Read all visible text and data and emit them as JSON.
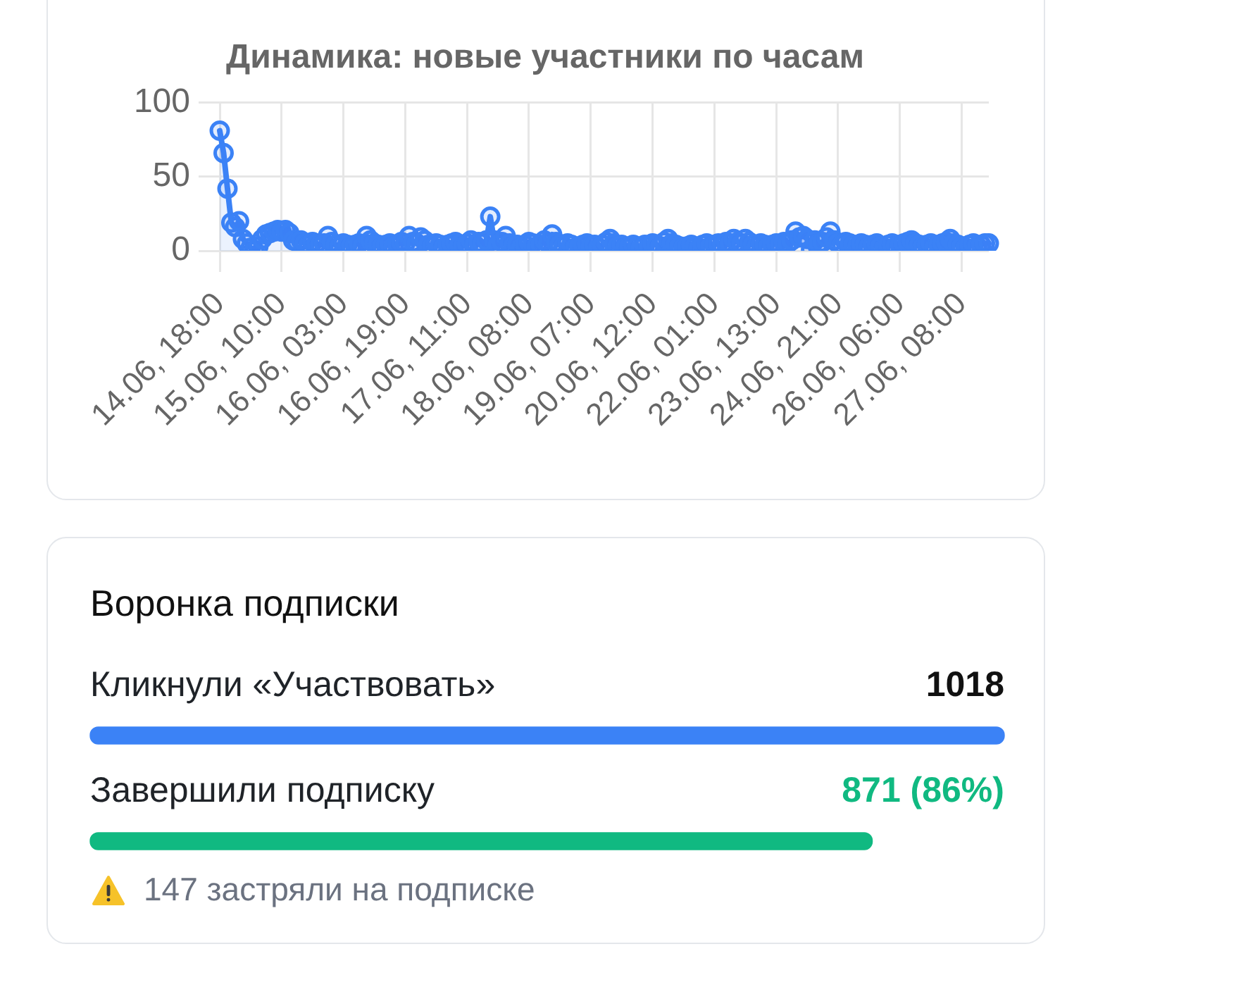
{
  "chart_data": [
    {
      "type": "area",
      "title": "Динамика: новые участники по часам",
      "categories": [
        "14.06, 18:00",
        null,
        null,
        null,
        null,
        null,
        null,
        null,
        null,
        null,
        null,
        null,
        null,
        null,
        null,
        null,
        "15.06, 10:00",
        null,
        null,
        null,
        null,
        null,
        null,
        null,
        null,
        null,
        null,
        null,
        null,
        null,
        null,
        null,
        "16.06, 03:00",
        null,
        null,
        null,
        null,
        null,
        null,
        null,
        null,
        null,
        null,
        null,
        null,
        null,
        null,
        null,
        "16.06, 19:00",
        null,
        null,
        null,
        null,
        null,
        null,
        null,
        null,
        null,
        null,
        null,
        null,
        null,
        null,
        null,
        "17.06, 11:00",
        null,
        null,
        null,
        null,
        null,
        null,
        null,
        null,
        null,
        null,
        null,
        null,
        null,
        null,
        null,
        "18.06, 08:00",
        null,
        null,
        null,
        null,
        null,
        null,
        null,
        null,
        null,
        null,
        null,
        null,
        null,
        null,
        null,
        "19.06, 07:00",
        null,
        null,
        null,
        null,
        null,
        null,
        null,
        null,
        null,
        null,
        null,
        null,
        null,
        null,
        null,
        "20.06, 12:00",
        null,
        null,
        null,
        null,
        null,
        null,
        null,
        null,
        null,
        null,
        null,
        null,
        null,
        null,
        null,
        "22.06, 01:00",
        null,
        null,
        null,
        null,
        null,
        null,
        null,
        null,
        null,
        null,
        null,
        null,
        null,
        null,
        null,
        "23.06, 13:00",
        null,
        null,
        null,
        null,
        null,
        null,
        null,
        null,
        null,
        null,
        null,
        null,
        null,
        null,
        null,
        "24.06, 21:00",
        null,
        null,
        null,
        null,
        null,
        null,
        null,
        null,
        null,
        null,
        null,
        null,
        null,
        null,
        null,
        "26.06, 06:00",
        null,
        null,
        null,
        null,
        null,
        null,
        null,
        null,
        null,
        null,
        null,
        null,
        null,
        null,
        null,
        "27.06, 08:00",
        null,
        null,
        null,
        null,
        null,
        null,
        null
      ],
      "values": [
        81,
        66,
        42,
        19,
        16,
        20,
        8,
        5,
        2,
        0,
        3,
        8,
        11,
        12,
        13,
        14,
        13,
        14,
        12,
        7,
        6,
        7,
        5,
        4,
        6,
        5,
        4,
        5,
        10,
        6,
        4,
        3,
        5,
        4,
        3,
        4,
        5,
        3,
        10,
        7,
        5,
        4,
        3,
        4,
        5,
        3,
        4,
        6,
        5,
        10,
        6,
        5,
        9,
        7,
        4,
        3,
        5,
        4,
        2,
        4,
        5,
        6,
        4,
        3,
        5,
        7,
        4,
        6,
        5,
        7,
        23,
        7,
        4,
        6,
        10,
        5,
        3,
        4,
        2,
        4,
        6,
        5,
        3,
        4,
        7,
        5,
        11,
        6,
        4,
        3,
        5,
        4,
        2,
        3,
        4,
        5,
        3,
        4,
        2,
        4,
        6,
        8,
        5,
        3,
        4,
        2,
        3,
        4,
        3,
        2,
        4,
        3,
        5,
        4,
        3,
        6,
        8,
        5,
        4,
        3,
        2,
        3,
        4,
        3,
        2,
        4,
        5,
        3,
        4,
        5,
        4,
        6,
        5,
        8,
        6,
        5,
        8,
        6,
        4,
        3,
        5,
        4,
        3,
        4,
        5,
        4,
        6,
        5,
        7,
        13,
        9,
        10,
        8,
        1,
        7,
        5,
        6,
        9,
        13,
        7,
        5,
        4,
        6,
        5,
        4,
        3,
        5,
        4,
        3,
        4,
        5,
        3,
        2,
        4,
        5,
        3,
        4,
        5,
        6,
        7,
        5,
        4,
        3,
        4,
        5,
        2,
        4,
        5,
        6,
        8,
        5,
        4,
        3,
        2,
        4,
        5,
        3,
        4,
        5,
        5
      ],
      "color": "#3b82f6",
      "ylim": [
        0,
        100
      ],
      "yticks": [
        0,
        50,
        100
      ],
      "grid": true,
      "marker": "circle"
    },
    {
      "type": "bar",
      "orientation": "horizontal",
      "title": "Воронка подписки",
      "categories": [
        "Кликнули «Участвовать»",
        "Завершили подписку"
      ],
      "values": [
        1018,
        871
      ],
      "colors": [
        "#3b82f6",
        "#10b981"
      ],
      "value_labels": [
        "1018",
        "871 (86%)"
      ],
      "tick_labels": "y",
      "annotations": [
        "147 застряли на подписке"
      ]
    }
  ]
}
